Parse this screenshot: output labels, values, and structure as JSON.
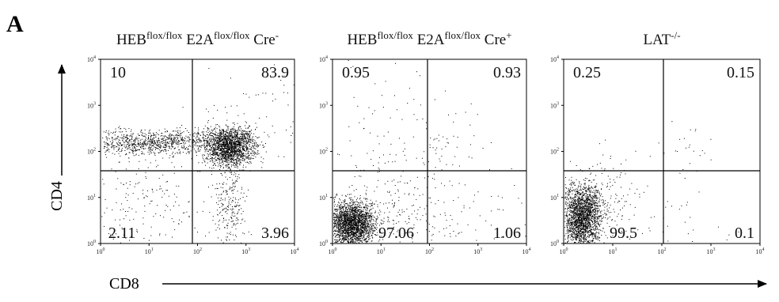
{
  "panel_label": "A",
  "y_axis_label": "CD4",
  "x_axis_label": "CD8",
  "ticks": [
    {
      "base": "10",
      "exp": "0"
    },
    {
      "base": "10",
      "exp": "1"
    },
    {
      "base": "10",
      "exp": "2"
    },
    {
      "base": "10",
      "exp": "3"
    },
    {
      "base": "10",
      "exp": "4"
    }
  ],
  "panels": [
    {
      "title": [
        {
          "text": "HEB"
        },
        {
          "sup": "flox/flox"
        },
        {
          "text": " E2A"
        },
        {
          "sup": "flox/flox"
        },
        {
          "text": " Cre"
        },
        {
          "sup": "-"
        }
      ],
      "quadrants": {
        "upper_left": 10,
        "upper_right": 83.9,
        "lower_left": 2.11,
        "lower_right": 3.96
      }
    },
    {
      "title": [
        {
          "text": "HEB"
        },
        {
          "sup": "flox/flox"
        },
        {
          "text": " E2A"
        },
        {
          "sup": "flox/flox"
        },
        {
          "text": " Cre"
        },
        {
          "sup": "+"
        }
      ],
      "quadrants": {
        "upper_left": 0.95,
        "upper_right": 0.93,
        "lower_left": 97.06,
        "lower_right": 1.06
      }
    },
    {
      "title": [
        {
          "text": "LAT"
        },
        {
          "sup": "-/-"
        }
      ],
      "quadrants": {
        "upper_left": 0.25,
        "upper_right": 0.15,
        "lower_left": 99.5,
        "lower_right": 0.1
      }
    }
  ]
}
